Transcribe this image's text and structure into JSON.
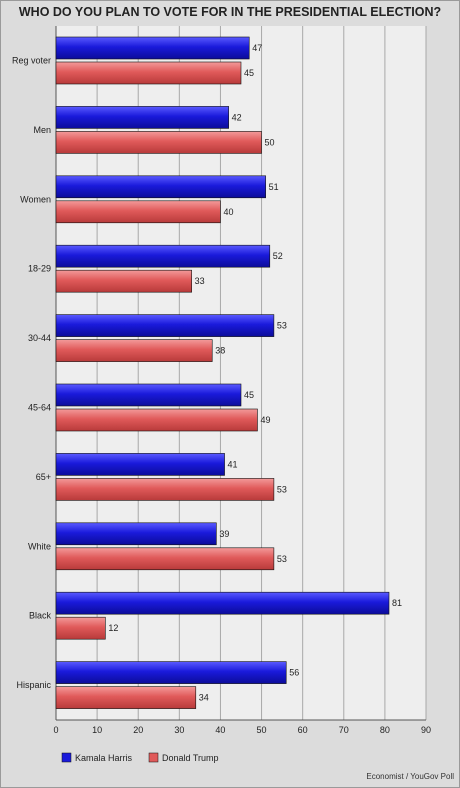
{
  "chart_data": {
    "type": "bar",
    "orientation": "horizontal",
    "title": "WHO DO YOU PLAN TO VOTE FOR IN THE PRESIDENTIAL ELECTION?",
    "source": "Economist / YouGov Poll",
    "categories": [
      "Reg voter",
      "Men",
      "Women",
      "18-29",
      "30-44",
      "45-64",
      "65+",
      "White",
      "Black",
      "Hispanic"
    ],
    "series": [
      {
        "name": "Kamala Harris",
        "color": "#1a1adb",
        "values": [
          47,
          42,
          51,
          52,
          53,
          45,
          41,
          39,
          81,
          56
        ]
      },
      {
        "name": "Donald Trump",
        "color": "#e05a5a",
        "values": [
          45,
          50,
          40,
          33,
          38,
          49,
          53,
          53,
          12,
          34
        ]
      }
    ],
    "xlim": [
      0,
      90
    ],
    "xticks": [
      0,
      10,
      20,
      30,
      40,
      50,
      60,
      70,
      80,
      90
    ],
    "grid": true,
    "legend_position": "bottom-left"
  }
}
